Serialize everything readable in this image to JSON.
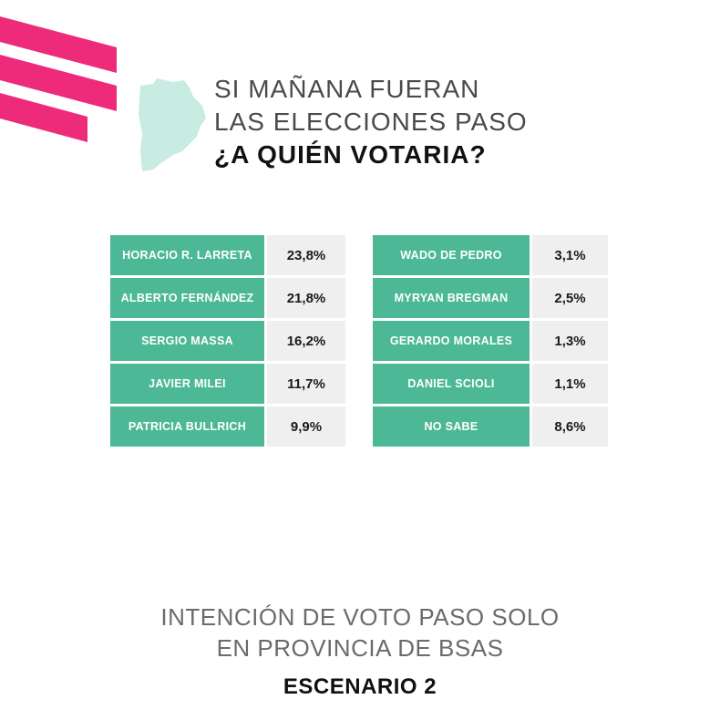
{
  "colors": {
    "accent": "#ee2a7b",
    "green": "#4db895",
    "cell": "#efefef"
  },
  "header": {
    "line1": "SI MAÑANA FUERAN",
    "line2": "LAS ELECCIONES PASO",
    "question": "¿A QUIÉN VOTARIA?"
  },
  "chart_data": {
    "type": "table",
    "rows_left": [
      {
        "name": "HORACIO R. LARRETA",
        "value": "23,8%"
      },
      {
        "name": "ALBERTO FERNÁNDEZ",
        "value": "21,8%"
      },
      {
        "name": "SERGIO MASSA",
        "value": "16,2%"
      },
      {
        "name": "JAVIER MILEI",
        "value": "11,7%"
      },
      {
        "name": "PATRICIA BULLRICH",
        "value": "9,9%"
      }
    ],
    "rows_right": [
      {
        "name": "WADO DE PEDRO",
        "value": "3,1%"
      },
      {
        "name": "MYRYAN BREGMAN",
        "value": "2,5%"
      },
      {
        "name": "GERARDO MORALES",
        "value": "1,3%"
      },
      {
        "name": "DANIEL SCIOLI",
        "value": "1,1%"
      },
      {
        "name": "NO SABE",
        "value": "8,6%"
      }
    ]
  },
  "footer": {
    "line1": "INTENCIÓN DE VOTO PASO SOLO",
    "line2": "EN PROVINCIA DE BSAS",
    "scenario": "ESCENARIO 2"
  }
}
